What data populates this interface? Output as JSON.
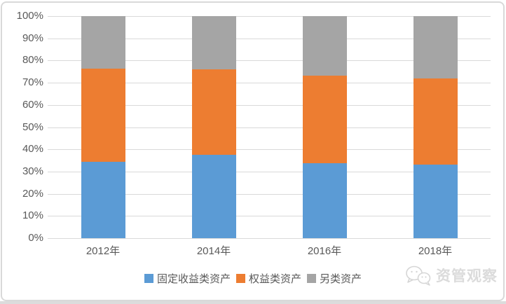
{
  "chart_data": {
    "type": "bar",
    "stacked": true,
    "unit": "percent",
    "title": "",
    "xlabel": "",
    "ylabel": "",
    "categories": [
      "2012年",
      "2014年",
      "2016年",
      "2018年"
    ],
    "series": [
      {
        "name": "固定收益类资产",
        "color": "#5B9BD5",
        "values": [
          34.4,
          37.4,
          33.8,
          33.1
        ]
      },
      {
        "name": "权益类资产",
        "color": "#ED7D31",
        "values": [
          41.9,
          38.6,
          39.4,
          38.8
        ]
      },
      {
        "name": "另类资产",
        "color": "#A5A5A5",
        "values": [
          23.7,
          24.0,
          26.8,
          28.1
        ]
      }
    ],
    "ylim": [
      0,
      100
    ],
    "yticks": [
      "0%",
      "10%",
      "20%",
      "30%",
      "40%",
      "50%",
      "60%",
      "70%",
      "80%",
      "90%",
      "100%"
    ],
    "grid": true,
    "legend_position": "bottom"
  },
  "colors": {
    "gridline": "#D9D9D9",
    "axis_text": "#595959",
    "frame_border": "#D9D9D9",
    "background": "#FFFFFF"
  },
  "watermark": {
    "icon": "chat-bubbles-icon",
    "text": "资管观察"
  }
}
